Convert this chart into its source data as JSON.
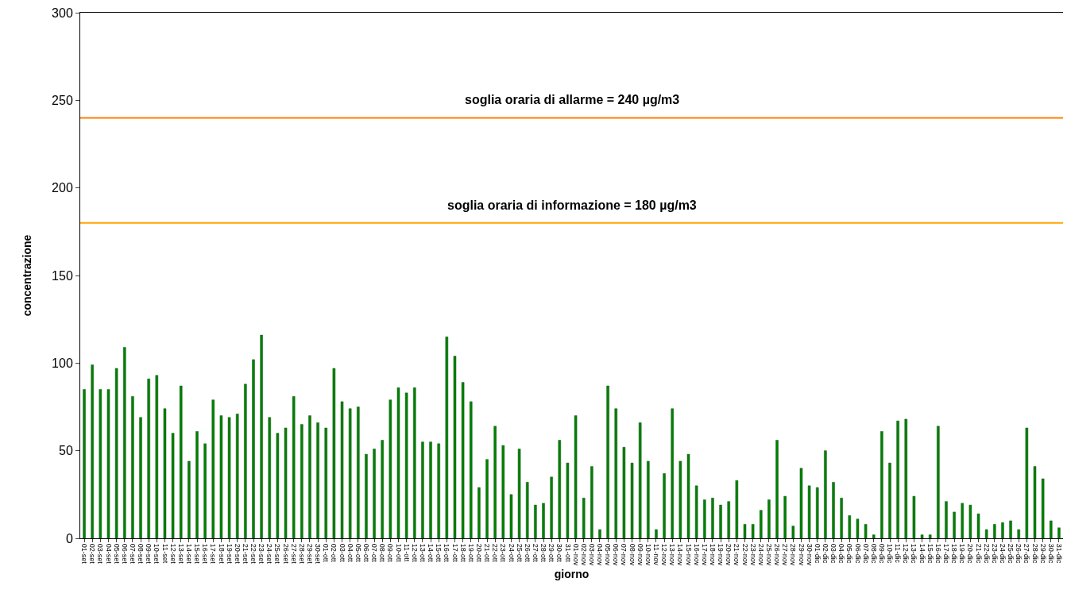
{
  "chart_data": {
    "type": "bar",
    "xlabel": "giorno",
    "ylabel": "concentrazione",
    "categories": [
      "01-set",
      "02-set",
      "03-set",
      "04-set",
      "05-set",
      "06-set",
      "07-set",
      "08-set",
      "09-set",
      "10-set",
      "11-set",
      "12-set",
      "13-set",
      "14-set",
      "15-set",
      "16-set",
      "17-set",
      "18-set",
      "19-set",
      "20-set",
      "21-set",
      "22-set",
      "23-set",
      "24-set",
      "25-set",
      "26-set",
      "27-set",
      "28-set",
      "29-set",
      "30-set",
      "01-ott",
      "02-ott",
      "03-ott",
      "04-ott",
      "05-ott",
      "06-ott",
      "07-ott",
      "08-ott",
      "09-ott",
      "10-ott",
      "11-ott",
      "12-ott",
      "13-ott",
      "14-ott",
      "15-ott",
      "16-ott",
      "17-ott",
      "18-ott",
      "19-ott",
      "20-ott",
      "21-ott",
      "22-ott",
      "23-ott",
      "24-ott",
      "25-ott",
      "26-ott",
      "27-ott",
      "28-ott",
      "29-ott",
      "30-ott",
      "31-ott",
      "01-nov",
      "02-nov",
      "03-nov",
      "04-nov",
      "05-nov",
      "06-nov",
      "07-nov",
      "08-nov",
      "09-nov",
      "10-nov",
      "11-nov",
      "12-nov",
      "13-nov",
      "14-nov",
      "15-nov",
      "16-nov",
      "17-nov",
      "18-nov",
      "19-nov",
      "20-nov",
      "21-nov",
      "22-nov",
      "23-nov",
      "24-nov",
      "25-nov",
      "26-nov",
      "27-nov",
      "28-nov",
      "29-nov",
      "30-nov",
      "01-dic",
      "02-dic",
      "03-dic",
      "04-dic",
      "05-dic",
      "06-dic",
      "07-dic",
      "08-dic",
      "09-dic",
      "10-dic",
      "11-dic",
      "12-dic",
      "13-dic",
      "14-dic",
      "15-dic",
      "16-dic",
      "17-dic",
      "18-dic",
      "19-dic",
      "20-dic",
      "21-dic",
      "22-dic",
      "23-dic",
      "24-dic",
      "25-dic",
      "26-dic",
      "27-dic",
      "28-dic",
      "29-dic",
      "30-dic",
      "31-dic"
    ],
    "values": [
      85,
      99,
      85,
      85,
      97,
      109,
      81,
      69,
      91,
      93,
      74,
      60,
      87,
      44,
      61,
      54,
      79,
      70,
      69,
      71,
      88,
      102,
      116,
      69,
      60,
      63,
      81,
      65,
      70,
      66,
      63,
      97,
      78,
      74,
      75,
      48,
      51,
      56,
      79,
      86,
      83,
      86,
      55,
      55,
      54,
      115,
      104,
      89,
      78,
      29,
      45,
      64,
      53,
      25,
      51,
      32,
      19,
      20,
      35,
      56,
      43,
      70,
      23,
      41,
      5,
      87,
      74,
      52,
      43,
      66,
      44,
      5,
      37,
      74,
      44,
      48,
      30,
      22,
      23,
      19,
      21,
      33,
      8,
      8,
      16,
      22,
      56,
      24,
      7,
      40,
      30,
      29,
      50,
      32,
      23,
      13,
      11,
      8,
      2,
      61,
      43,
      67,
      68,
      24,
      2,
      2,
      64,
      21,
      15,
      20,
      19,
      14,
      5,
      8,
      9,
      10,
      5,
      63,
      41,
      34,
      10,
      6
    ],
    "color": "#008000",
    "ylim": [
      0,
      300
    ],
    "yticks": [
      0,
      50,
      100,
      150,
      200,
      250,
      300
    ],
    "ref_lines": [
      {
        "axis": "y",
        "value": 180,
        "label": "soglia oraria di informazione = 180 µg/m3",
        "color": "#ffa500"
      },
      {
        "axis": "y",
        "value": 240,
        "label": "soglia oraria di allarme = 240 µg/m3",
        "color": "#ff7f00"
      }
    ]
  }
}
